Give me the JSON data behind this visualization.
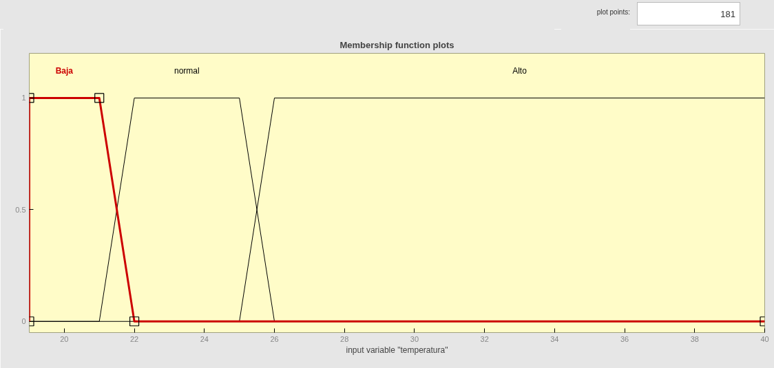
{
  "chart_data": {
    "type": "line",
    "title": "Membership function plots",
    "xlabel": "input variable \"temperatura\"",
    "annotations": [
      "plot points:",
      "181"
    ],
    "xlim": [
      19,
      40
    ],
    "xticks": [
      20,
      22,
      24,
      26,
      28,
      30,
      32,
      34,
      36,
      38,
      40
    ],
    "ylim": [
      -0.05,
      1.2
    ],
    "yticks": [
      0,
      0.5,
      1
    ],
    "grid": false,
    "legend": false,
    "marker": "none",
    "line_style": "solid",
    "series": [
      {
        "name": "normal",
        "color": "#000000",
        "x": [
          19,
          21,
          22,
          25,
          26,
          40
        ],
        "values": [
          0,
          0,
          1,
          1,
          0,
          0
        ]
      },
      {
        "name": "Alto",
        "color": "#000000",
        "x": [
          19,
          25,
          26,
          40
        ],
        "values": [
          0,
          0,
          1,
          1
        ]
      },
      {
        "name": "Baja",
        "color": "#cc0000",
        "marker": "square",
        "x": [
          19,
          19,
          21,
          22,
          40
        ],
        "values": [
          0,
          1,
          1,
          0,
          0
        ]
      }
    ]
  }
}
